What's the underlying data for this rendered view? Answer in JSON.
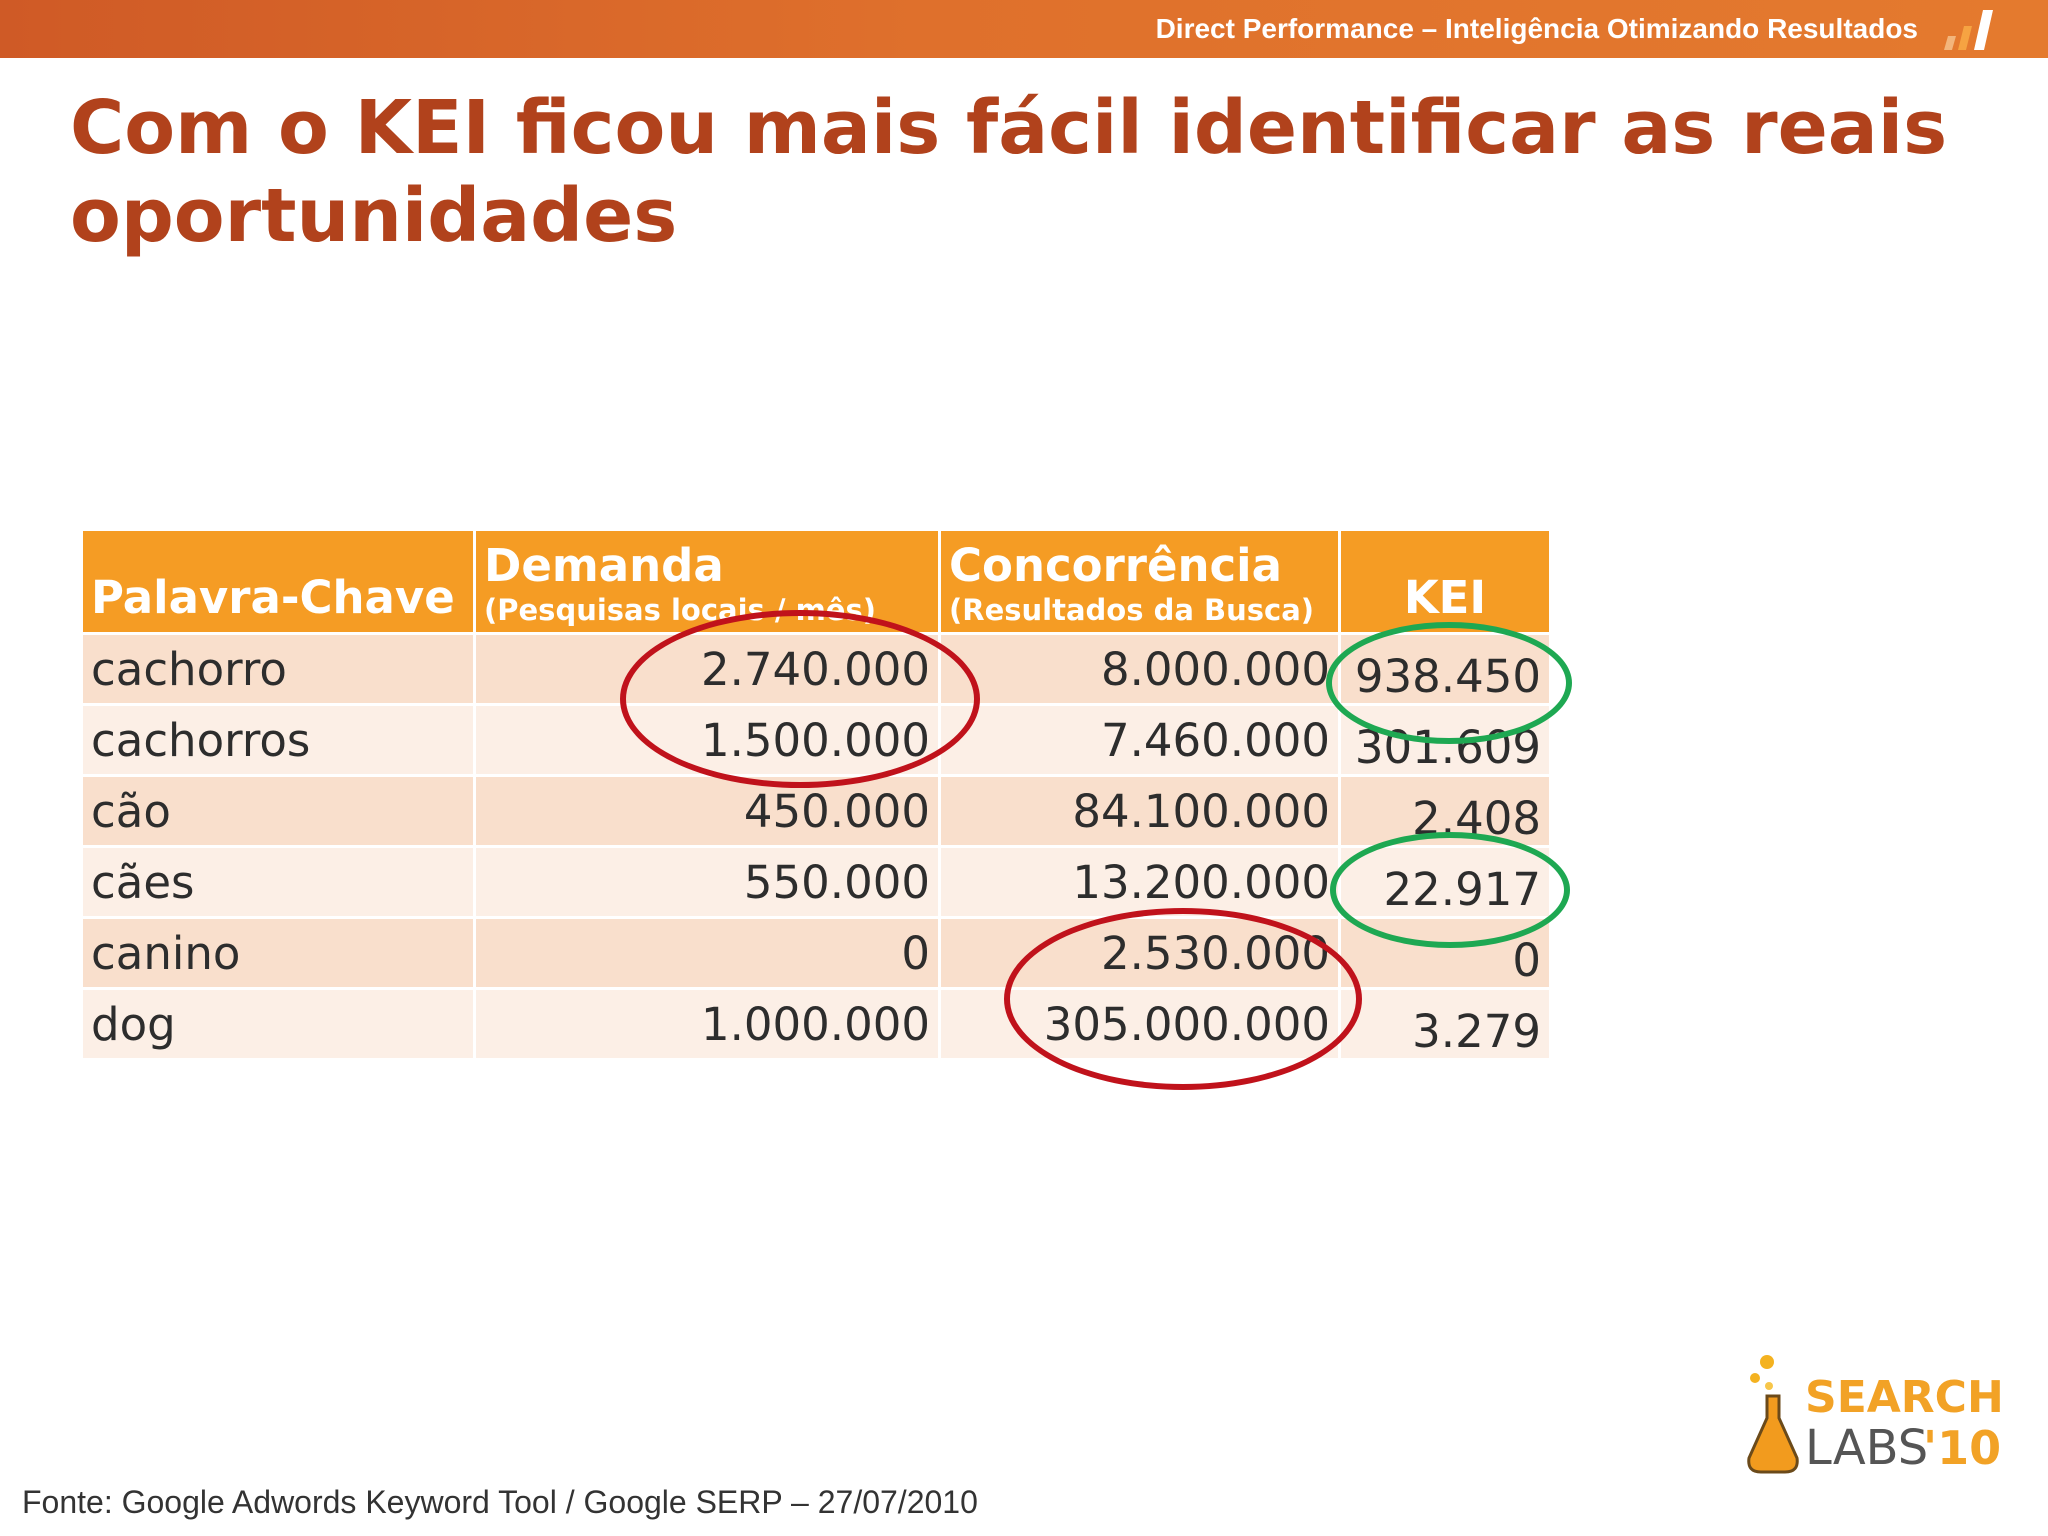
{
  "header": {
    "tagline": "Direct Performance – Inteligência Otimizando Resultados",
    "logo_icon": "ascending-bars-icon",
    "bar_color": "#d9652a"
  },
  "slide": {
    "title": "Com o KEI ficou mais fácil identificar as reais oportunidades",
    "title_color": "#b1421c"
  },
  "table": {
    "header_color": "#f59c24",
    "columns": [
      {
        "label": "Palavra-Chave",
        "sub": ""
      },
      {
        "label": "Demanda",
        "sub": "(Pesquisas locais / mês)"
      },
      {
        "label": "Concorrência",
        "sub": "(Resultados da Busca)"
      },
      {
        "label": "KEI",
        "sub": ""
      }
    ],
    "rows": [
      {
        "keyword": "cachorro",
        "demanda": "2.740.000",
        "concorrencia": "8.000.000",
        "kei": "938.450"
      },
      {
        "keyword": "cachorros",
        "demanda": "1.500.000",
        "concorrencia": "7.460.000",
        "kei": "301.609"
      },
      {
        "keyword": "cão",
        "demanda": "450.000",
        "concorrencia": "84.100.000",
        "kei": "2.408"
      },
      {
        "keyword": "cães",
        "demanda": "550.000",
        "concorrencia": "13.200.000",
        "kei": "22.917"
      },
      {
        "keyword": "canino",
        "demanda": "0",
        "concorrencia": "2.530.000",
        "kei": "0"
      },
      {
        "keyword": "dog",
        "demanda": "1.000.000",
        "concorrencia": "305.000.000",
        "kei": "3.279"
      }
    ]
  },
  "highlights": {
    "red_color": "#c0121b",
    "green_color": "#1ea852"
  },
  "footer": {
    "source": "Fonte: Google Adwords Keyword Tool / Google SERP – 27/07/2010",
    "logo_word1": "SEARCH",
    "logo_word2": "LABS",
    "logo_year": "'10",
    "logo_icon": "lab-flask-icon"
  }
}
